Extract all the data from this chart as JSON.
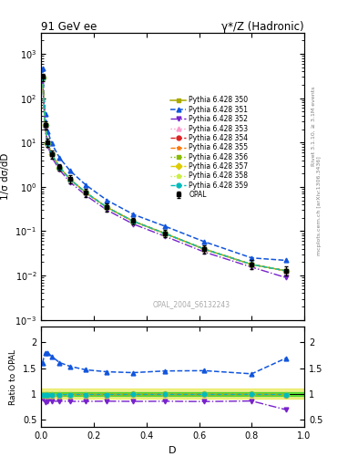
{
  "title_left": "91 GeV ee",
  "title_right": "γ*/Z (Hadronic)",
  "ylabel_main": "1/σ dσ/dD",
  "ylabel_ratio": "Ratio to OPAL",
  "xlabel": "D",
  "right_label_top": "Rivet 3.1.10, ≥ 3.1M events",
  "right_label_bottom": "mcplots.cern.ch [arXiv:1306.3436]",
  "watermark": "OPAL_2004_S6132243",
  "ylim_main": [
    0.001,
    3000.0
  ],
  "ylim_ratio": [
    0.35,
    2.3
  ],
  "xlim": [
    0.0,
    1.0
  ],
  "opal_x": [
    0.005,
    0.015,
    0.025,
    0.04,
    0.07,
    0.11,
    0.17,
    0.25,
    0.35,
    0.47,
    0.62,
    0.8,
    0.93
  ],
  "opal_y": [
    300,
    25,
    10,
    5.5,
    2.8,
    1.5,
    0.75,
    0.35,
    0.17,
    0.09,
    0.04,
    0.018,
    0.013
  ],
  "opal_yerr": [
    60,
    5,
    2,
    1.1,
    0.5,
    0.3,
    0.15,
    0.07,
    0.03,
    0.018,
    0.008,
    0.004,
    0.003
  ],
  "py350_x": [
    0.005,
    0.015,
    0.025,
    0.04,
    0.07,
    0.11,
    0.17,
    0.25,
    0.35,
    0.47,
    0.62,
    0.8,
    0.93
  ],
  "py350_y": [
    295,
    24.5,
    9.8,
    5.4,
    2.75,
    1.48,
    0.74,
    0.345,
    0.168,
    0.089,
    0.0395,
    0.0178,
    0.0128
  ],
  "py351_x": [
    0.005,
    0.015,
    0.025,
    0.04,
    0.07,
    0.11,
    0.17,
    0.25,
    0.35,
    0.47,
    0.62,
    0.8,
    0.93
  ],
  "py351_y": [
    480,
    45,
    18,
    9.5,
    4.5,
    2.3,
    1.1,
    0.5,
    0.24,
    0.13,
    0.058,
    0.025,
    0.022
  ],
  "py352_x": [
    0.005,
    0.015,
    0.025,
    0.04,
    0.07,
    0.11,
    0.17,
    0.25,
    0.35,
    0.47,
    0.62,
    0.8,
    0.93
  ],
  "py352_y": [
    270,
    21,
    8.5,
    4.7,
    2.4,
    1.28,
    0.64,
    0.3,
    0.145,
    0.077,
    0.034,
    0.0155,
    0.009
  ],
  "py353_x": [
    0.005,
    0.015,
    0.025,
    0.04,
    0.07,
    0.11,
    0.17,
    0.25,
    0.35,
    0.47,
    0.62,
    0.8,
    0.93
  ],
  "py353_y": [
    295,
    24.5,
    9.8,
    5.4,
    2.75,
    1.48,
    0.74,
    0.345,
    0.168,
    0.089,
    0.0395,
    0.0178,
    0.0128
  ],
  "py354_x": [
    0.005,
    0.015,
    0.025,
    0.04,
    0.07,
    0.11,
    0.17,
    0.25,
    0.35,
    0.47,
    0.62,
    0.8,
    0.93
  ],
  "py354_y": [
    295,
    24.5,
    9.8,
    5.4,
    2.75,
    1.48,
    0.74,
    0.345,
    0.168,
    0.089,
    0.0395,
    0.0178,
    0.0128
  ],
  "py355_x": [
    0.005,
    0.015,
    0.025,
    0.04,
    0.07,
    0.11,
    0.17,
    0.25,
    0.35,
    0.47,
    0.62,
    0.8,
    0.93
  ],
  "py355_y": [
    295,
    24.5,
    9.8,
    5.4,
    2.75,
    1.48,
    0.74,
    0.345,
    0.168,
    0.089,
    0.0395,
    0.0178,
    0.0128
  ],
  "py356_x": [
    0.005,
    0.015,
    0.025,
    0.04,
    0.07,
    0.11,
    0.17,
    0.25,
    0.35,
    0.47,
    0.62,
    0.8,
    0.93
  ],
  "py356_y": [
    295,
    24.5,
    9.8,
    5.4,
    2.75,
    1.48,
    0.74,
    0.345,
    0.168,
    0.089,
    0.0395,
    0.0178,
    0.0128
  ],
  "py357_x": [
    0.005,
    0.015,
    0.025,
    0.04,
    0.07,
    0.11,
    0.17,
    0.25,
    0.35,
    0.47,
    0.62,
    0.8,
    0.93
  ],
  "py357_y": [
    295,
    24.5,
    9.8,
    5.4,
    2.75,
    1.48,
    0.74,
    0.345,
    0.168,
    0.089,
    0.0395,
    0.0178,
    0.0128
  ],
  "py358_x": [
    0.005,
    0.015,
    0.025,
    0.04,
    0.07,
    0.11,
    0.17,
    0.25,
    0.35,
    0.47,
    0.62,
    0.8,
    0.93
  ],
  "py358_y": [
    295,
    24.5,
    9.8,
    5.4,
    2.75,
    1.48,
    0.74,
    0.345,
    0.168,
    0.089,
    0.0395,
    0.0178,
    0.0128
  ],
  "py359_x": [
    0.005,
    0.015,
    0.025,
    0.04,
    0.07,
    0.11,
    0.17,
    0.25,
    0.35,
    0.47,
    0.62,
    0.8,
    0.93
  ],
  "py359_y": [
    295,
    24.5,
    9.8,
    5.4,
    2.75,
    1.48,
    0.74,
    0.345,
    0.168,
    0.089,
    0.0395,
    0.0178,
    0.0128
  ],
  "colors": {
    "opal": "#000000",
    "py350": "#aaaa00",
    "py351": "#1155dd",
    "py352": "#7722cc",
    "py353": "#ff99cc",
    "py354": "#dd2222",
    "py355": "#ff7700",
    "py356": "#88bb00",
    "py357": "#ddcc00",
    "py358": "#ccee44",
    "py359": "#00bbbb"
  },
  "band_green": {
    "y": 1.0,
    "hwidth": 0.04,
    "color": "#00cc00",
    "alpha": 0.55
  },
  "band_yellow": {
    "y": 1.0,
    "hwidth": 0.1,
    "color": "#dddd00",
    "alpha": 0.45
  }
}
